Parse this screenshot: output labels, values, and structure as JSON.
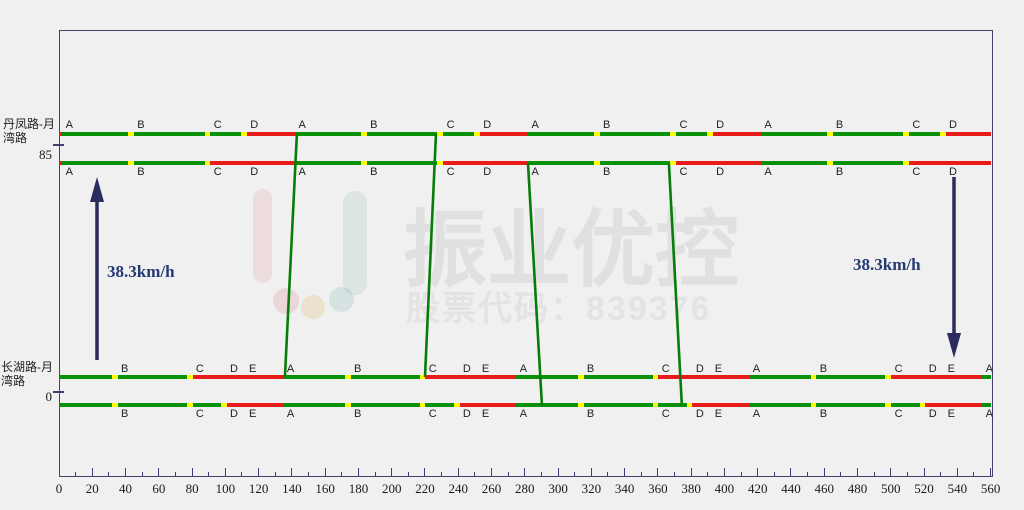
{
  "watermark": {
    "brand": "振业优控",
    "stock_line": "股票代码：839376"
  },
  "labels": {
    "speed_up": "38.3km/h",
    "speed_down": "38.3km/h"
  },
  "colors": {
    "background": "#f0f0f0",
    "axis": "#45406f",
    "bar_green": "#089008",
    "bar_red": "#e81b1b",
    "bar_yellow": "#ffff00",
    "trajectory": "#067d06",
    "arrow": "#2b2b5e",
    "speed_text": "#243a73"
  },
  "chart_data": {
    "type": "line",
    "title": "",
    "description": "Arterial green-wave time-space diagram: two signalized intersections, signal state bars (green/yellow/red) over time, with through-band trajectory lines at 38.3 km/h in both directions.",
    "x_min": 0,
    "x_max": 560,
    "x_major_step": 20,
    "x_minor_step": 10,
    "x_tick_labels": [
      "0",
      "20",
      "40",
      "60",
      "80",
      "100",
      "120",
      "140",
      "160",
      "180",
      "200",
      "220",
      "240",
      "260",
      "280",
      "300",
      "320",
      "340",
      "360",
      "380",
      "400",
      "420",
      "440",
      "460",
      "480",
      "500",
      "520",
      "540",
      "560"
    ],
    "cycle_length": 140,
    "yellow_duration": 3.5,
    "speed_kmh": 38.3,
    "intersections": [
      {
        "name_line1": "丹凤路-月",
        "name_line2": "湾路",
        "position": "85",
        "position_value": 85,
        "bars": [
          {
            "id": "bar1",
            "label_side": "above",
            "anchor": 2,
            "phases": [
              {
                "letter": "A",
                "offset": 0,
                "state": "green"
              },
              {
                "letter": "B",
                "offset": 43,
                "state": "green"
              },
              {
                "letter": "C",
                "offset": 89,
                "state": "green"
              },
              {
                "letter": "D",
                "offset": 111,
                "state": "red"
              }
            ]
          },
          {
            "id": "bar2",
            "label_side": "below",
            "anchor": 2,
            "phases": [
              {
                "letter": "A",
                "offset": 0,
                "state": "green"
              },
              {
                "letter": "B",
                "offset": 43,
                "state": "green"
              },
              {
                "letter": "C",
                "offset": 89,
                "state": "red"
              },
              {
                "letter": "D",
                "offset": 111,
                "state": "red"
              }
            ]
          }
        ]
      },
      {
        "name_line1": "长湖路-月",
        "name_line2": "湾路",
        "position": "0",
        "position_value": 0,
        "bars": [
          {
            "id": "bar3",
            "label_side": "above",
            "anchor": -5,
            "phases": [
              {
                "letter": "A",
                "offset": 0,
                "state": "green"
              },
              {
                "letter": "B",
                "offset": 40.3,
                "state": "green"
              },
              {
                "letter": "C",
                "offset": 85.3,
                "state": "red"
              },
              {
                "letter": "D",
                "offset": 105.8,
                "state": "red"
              },
              {
                "letter": "E",
                "offset": 117.2,
                "state": "red"
              }
            ]
          },
          {
            "id": "bar4",
            "label_side": "below",
            "anchor": -5,
            "phases": [
              {
                "letter": "A",
                "offset": 0,
                "state": "green"
              },
              {
                "letter": "B",
                "offset": 40.3,
                "state": "green"
              },
              {
                "letter": "C",
                "offset": 85.3,
                "state": "green"
              },
              {
                "letter": "D",
                "offset": 105.8,
                "state": "red"
              },
              {
                "letter": "E",
                "offset": 117.2,
                "state": "red"
              }
            ]
          }
        ]
      }
    ],
    "trajectories": [
      {
        "x_from": 143.0,
        "from_bar": "bar1",
        "x_to": 135.8,
        "to_bar": "bar3",
        "direction": "up"
      },
      {
        "x_from": 226.6,
        "from_bar": "bar1",
        "x_to": 220.0,
        "to_bar": "bar3",
        "direction": "up"
      },
      {
        "x_from": 281.9,
        "from_bar": "bar2",
        "x_to": 290.3,
        "to_bar": "bar4",
        "direction": "down"
      },
      {
        "x_from": 366.6,
        "from_bar": "bar2",
        "x_to": 374.4,
        "to_bar": "bar4",
        "direction": "down"
      }
    ]
  }
}
